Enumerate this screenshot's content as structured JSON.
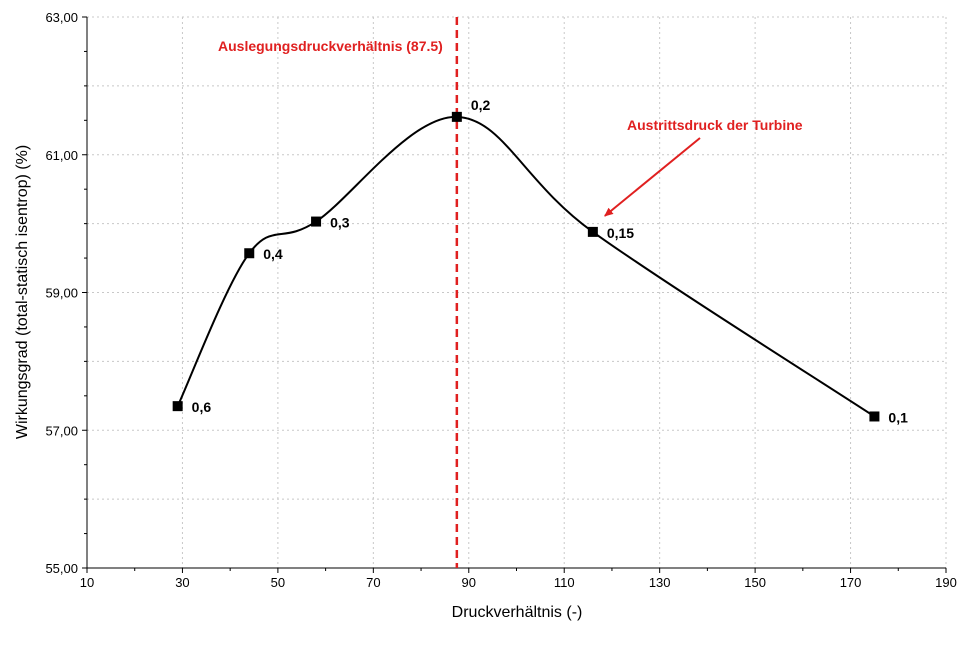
{
  "chart_data": {
    "type": "line",
    "xlabel": "Druckverhältnis  (-)",
    "ylabel": "Wirkungsgrad (total-statisch isentrop)  (%)",
    "xlim": [
      10,
      190
    ],
    "ylim": [
      55,
      63
    ],
    "xticks": [
      10,
      30,
      50,
      70,
      90,
      110,
      130,
      150,
      170,
      190
    ],
    "yticks": [
      55,
      57,
      59,
      61,
      63
    ],
    "ytick_labels": [
      "55,00",
      "57,00",
      "59,00",
      "61,00",
      "63,00"
    ],
    "grid": true,
    "series": [
      {
        "points": [
          {
            "x": 29,
            "y": 57.35,
            "label": "0,6"
          },
          {
            "x": 44,
            "y": 59.57,
            "label": "0,4"
          },
          {
            "x": 58,
            "y": 60.03,
            "label": "0,3"
          },
          {
            "x": 87.5,
            "y": 61.55,
            "label": "0,2"
          },
          {
            "x": 116,
            "y": 59.88,
            "label": "0,15"
          },
          {
            "x": 175,
            "y": 57.2,
            "label": "0,1"
          }
        ]
      }
    ],
    "vline": {
      "x": 87.5,
      "label": "Auslegungsdruckverhältnis (87.5)",
      "color": "#e02020"
    },
    "arrow_annotation": {
      "text": "Austrittsdruck der Turbine",
      "target_x": 116,
      "target_y": 59.88,
      "color": "#e02020"
    }
  }
}
